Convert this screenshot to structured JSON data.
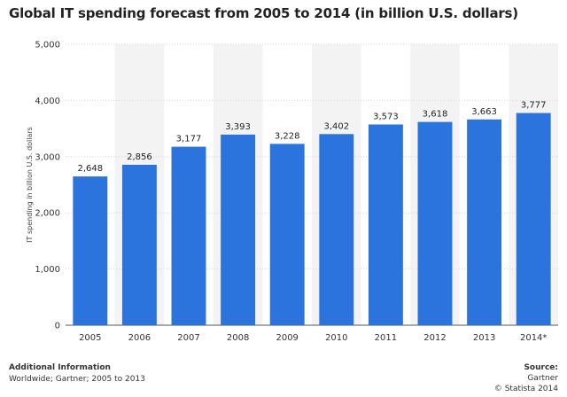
{
  "chart_data": {
    "type": "bar",
    "title": "Global IT spending forecast from 2005 to 2014 (in billion U.S. dollars)",
    "xlabel": "",
    "ylabel": "IT spending in billion U.S. dollars",
    "categories": [
      "2005",
      "2006",
      "2007",
      "2008",
      "2009",
      "2010",
      "2011",
      "2012",
      "2013",
      "2014*"
    ],
    "values": [
      2648,
      2856,
      3177,
      3393,
      3228,
      3402,
      3573,
      3618,
      3663,
      3777
    ],
    "value_labels": [
      "2,648",
      "2,856",
      "3,177",
      "3,393",
      "3,228",
      "3,402",
      "3,573",
      "3,618",
      "3,663",
      "3,777"
    ],
    "ylim": [
      0,
      5000
    ],
    "yticks": [
      0,
      1000,
      2000,
      3000,
      4000,
      5000
    ],
    "ytick_labels": [
      "0",
      "1,000",
      "2,000",
      "3,000",
      "4,000",
      "5,000"
    ],
    "grid": true,
    "bar_color": "#2b74dd",
    "band_color": "#f3f3f3"
  },
  "footer": {
    "left_heading": "Additional Information",
    "left_text": "Worldwide; Gartner; 2005 to 2013",
    "right_heading": "Source:",
    "right_source": "Gartner",
    "right_copyright": "© Statista 2014"
  }
}
